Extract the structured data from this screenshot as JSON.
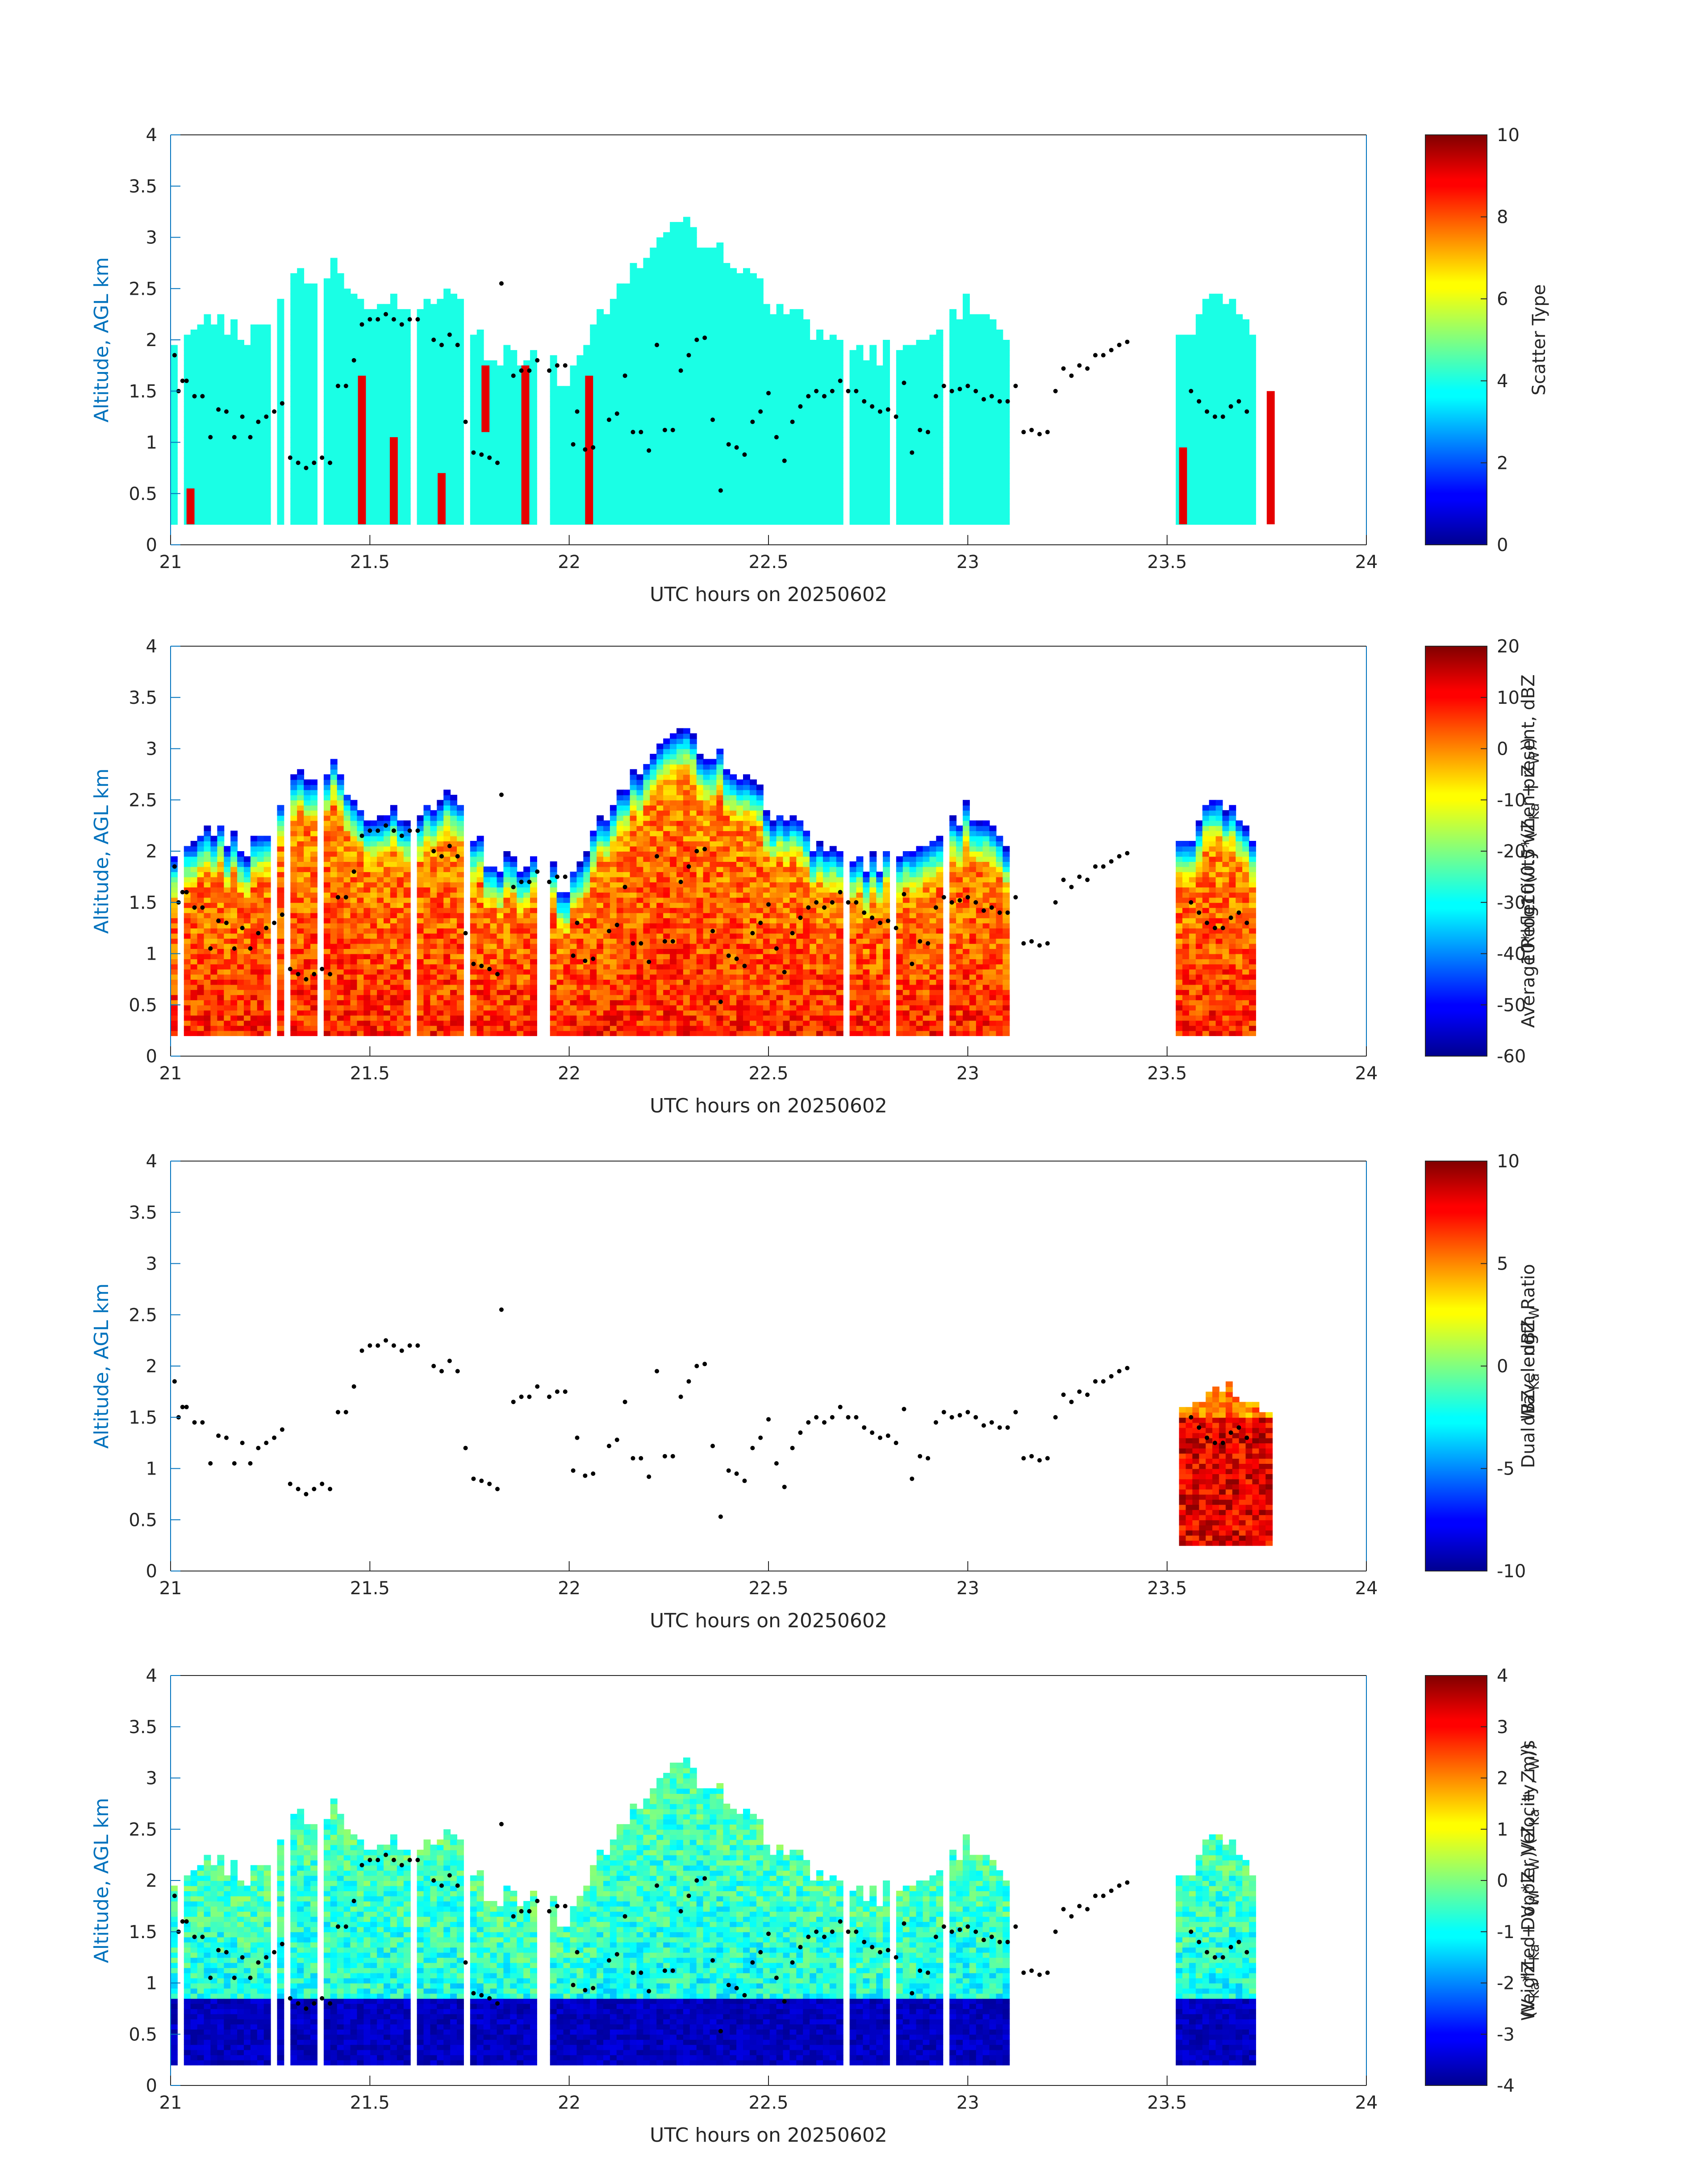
{
  "figure": {
    "panels": [
      {
        "id": "scatter-type",
        "ylabel": "Altitude, AGL km",
        "xlabel": "UTC hours on 20250602",
        "colorbar": {
          "label_line1": "Scatter Type",
          "label_line2": "",
          "ticks": [
            "10",
            "8",
            "6",
            "4",
            "2",
            "0"
          ],
          "clim": [
            0,
            10
          ]
        }
      },
      {
        "id": "reflectivity",
        "ylabel": "Altitude, AGL km",
        "xlabel": "UTC hours on 20250602",
        "colorbar": {
          "label_line1": "Average Reflectivity when present, dBZ",
          "label_line2": "10*log10(0.5*(Z",
          "label_line2_sub1": "Ka",
          "label_line2_mid": " + Z",
          "label_line2_sub2": "W",
          "label_line2_end": "))",
          "ticks": [
            "20",
            "10",
            "0",
            "-10",
            "-20",
            "-30",
            "-40",
            "-50",
            "-60"
          ],
          "clim": [
            -60,
            20
          ]
        }
      },
      {
        "id": "dwr",
        "ylabel": "Altitude, AGL km",
        "xlabel": "UTC hours on 20250602",
        "colorbar": {
          "label_line1": "Dual Wavelength Ratio",
          "label_line2": "dBZ",
          "label_line2_sub1": "Ka",
          "label_line2_mid": " - dBZ",
          "label_line2_sub2": "W",
          "label_line2_end": "",
          "ticks": [
            "10",
            "5",
            "0",
            "-5",
            "-10"
          ],
          "clim": [
            -10,
            10
          ]
        }
      },
      {
        "id": "doppler",
        "ylabel": "Altitude, AGL km",
        "xlabel": "UTC hours on 20250602",
        "colorbar": {
          "label_line1": "Weighted Doppler Velocity, m/s",
          "label_line2": "(V",
          "label_line2_sub1": "Ka",
          "label_line2_mid": "*Z",
          "label_line2_sub2": "Ka",
          "label_line2_end": " + V",
          "label_line2_sub3": "W",
          "label_line2_end2": "*Z",
          "label_line2_sub4": "W",
          "label_line2_end3": ")/(Z",
          "label_line2_sub5": "Ka",
          "label_line2_end4": " + Z",
          "label_line2_sub6": "W",
          "label_line2_end5": "))",
          "ticks": [
            "4",
            "3",
            "2",
            "1",
            "0",
            "-1",
            "-2",
            "-3",
            "-4"
          ],
          "clim": [
            -4,
            4
          ]
        }
      }
    ]
  },
  "chart_data": [
    {
      "type": "heatmap",
      "title": "",
      "xlabel": "UTC hours on 20250602",
      "ylabel": "Altitude, AGL km",
      "xlim": [
        21,
        24
      ],
      "ylim": [
        0,
        4
      ],
      "xticks": [
        "21",
        "21.5",
        "22",
        "22.5",
        "23",
        "23.5",
        "24"
      ],
      "yticks": [
        "0",
        "0.5",
        "1",
        "1.5",
        "2",
        "2.5",
        "3",
        "3.5",
        "4"
      ],
      "colorbar_label": "Scatter Type",
      "clim": [
        0,
        10
      ],
      "colormap": "jet",
      "cloud_top_km": [
        [
          21.0,
          2.0
        ],
        [
          21.1,
          2.2
        ],
        [
          21.2,
          2.0
        ],
        [
          21.3,
          2.5
        ],
        [
          21.4,
          2.7
        ],
        [
          21.5,
          2.35
        ],
        [
          21.6,
          2.3
        ],
        [
          21.7,
          2.5
        ],
        [
          21.8,
          1.8
        ],
        [
          21.9,
          1.85
        ],
        [
          22.0,
          1.6
        ],
        [
          22.1,
          2.4
        ],
        [
          22.2,
          2.8
        ],
        [
          22.3,
          3.1
        ],
        [
          22.4,
          2.8
        ],
        [
          22.5,
          2.35
        ],
        [
          22.6,
          2.1
        ],
        [
          22.7,
          1.9
        ],
        [
          22.8,
          1.85
        ],
        [
          22.9,
          2.0
        ],
        [
          23.0,
          2.35
        ],
        [
          23.1,
          2.0
        ],
        [
          23.55,
          2.0
        ],
        [
          23.62,
          2.6
        ],
        [
          23.72,
          1.9
        ]
      ],
      "dominant_value": 4,
      "patches_value": 9,
      "patches": [
        [
          21.04,
          0.2,
          0.55
        ],
        [
          21.47,
          0.2,
          1.65
        ],
        [
          21.55,
          0.2,
          1.05
        ],
        [
          21.67,
          0.2,
          0.7
        ],
        [
          21.78,
          1.1,
          1.75
        ],
        [
          21.88,
          0.2,
          1.75
        ],
        [
          22.04,
          0.2,
          1.65
        ],
        [
          23.53,
          0.2,
          0.95
        ],
        [
          23.75,
          0.2,
          1.5
        ]
      ],
      "cloud_base_dots_km": [
        [
          21.01,
          1.85
        ],
        [
          21.02,
          1.5
        ],
        [
          21.03,
          1.6
        ],
        [
          21.04,
          1.6
        ],
        [
          21.06,
          1.45
        ],
        [
          21.08,
          1.45
        ],
        [
          21.1,
          1.05
        ],
        [
          21.12,
          1.32
        ],
        [
          21.14,
          1.3
        ],
        [
          21.16,
          1.05
        ],
        [
          21.18,
          1.25
        ],
        [
          21.2,
          1.05
        ],
        [
          21.22,
          1.2
        ],
        [
          21.24,
          1.25
        ],
        [
          21.26,
          1.3
        ],
        [
          21.28,
          1.38
        ],
        [
          21.3,
          0.85
        ],
        [
          21.32,
          0.8
        ],
        [
          21.34,
          0.75
        ],
        [
          21.36,
          0.8
        ],
        [
          21.38,
          0.85
        ],
        [
          21.4,
          0.8
        ],
        [
          21.42,
          1.55
        ],
        [
          21.44,
          1.55
        ],
        [
          21.46,
          1.8
        ],
        [
          21.48,
          2.15
        ],
        [
          21.5,
          2.2
        ],
        [
          21.52,
          2.2
        ],
        [
          21.54,
          2.25
        ],
        [
          21.56,
          2.2
        ],
        [
          21.58,
          2.15
        ],
        [
          21.6,
          2.2
        ],
        [
          21.62,
          2.2
        ],
        [
          21.66,
          2.0
        ],
        [
          21.68,
          1.95
        ],
        [
          21.7,
          2.05
        ],
        [
          21.72,
          1.95
        ],
        [
          21.74,
          1.2
        ],
        [
          21.76,
          0.9
        ],
        [
          21.78,
          0.88
        ],
        [
          21.8,
          0.85
        ],
        [
          21.82,
          0.8
        ],
        [
          21.83,
          2.55
        ],
        [
          21.86,
          1.65
        ],
        [
          21.88,
          1.7
        ],
        [
          21.9,
          1.7
        ],
        [
          21.92,
          1.8
        ],
        [
          21.95,
          1.7
        ],
        [
          21.97,
          1.75
        ],
        [
          21.99,
          1.75
        ],
        [
          22.01,
          0.98
        ],
        [
          22.02,
          1.3
        ],
        [
          22.04,
          0.93
        ],
        [
          22.06,
          0.95
        ],
        [
          22.1,
          1.22
        ],
        [
          22.12,
          1.28
        ],
        [
          22.14,
          1.65
        ],
        [
          22.16,
          1.1
        ],
        [
          22.18,
          1.1
        ],
        [
          22.2,
          0.92
        ],
        [
          22.22,
          1.95
        ],
        [
          22.24,
          1.12
        ],
        [
          22.26,
          1.12
        ],
        [
          22.28,
          1.7
        ],
        [
          22.3,
          1.85
        ],
        [
          22.32,
          2.0
        ],
        [
          22.34,
          2.02
        ],
        [
          22.36,
          1.22
        ],
        [
          22.38,
          0.53
        ],
        [
          22.4,
          0.98
        ],
        [
          22.42,
          0.95
        ],
        [
          22.44,
          0.88
        ],
        [
          22.46,
          1.2
        ],
        [
          22.48,
          1.3
        ],
        [
          22.5,
          1.48
        ],
        [
          22.52,
          1.05
        ],
        [
          22.54,
          0.82
        ],
        [
          22.56,
          1.2
        ],
        [
          22.58,
          1.35
        ],
        [
          22.6,
          1.45
        ],
        [
          22.62,
          1.5
        ],
        [
          22.64,
          1.45
        ],
        [
          22.66,
          1.5
        ],
        [
          22.68,
          1.6
        ],
        [
          22.7,
          1.5
        ],
        [
          22.72,
          1.5
        ],
        [
          22.74,
          1.4
        ],
        [
          22.76,
          1.35
        ],
        [
          22.78,
          1.3
        ],
        [
          22.8,
          1.32
        ],
        [
          22.82,
          1.25
        ],
        [
          22.84,
          1.58
        ],
        [
          22.86,
          0.9
        ],
        [
          22.88,
          1.12
        ],
        [
          22.9,
          1.1
        ],
        [
          22.92,
          1.45
        ],
        [
          22.94,
          1.55
        ],
        [
          22.96,
          1.5
        ],
        [
          22.98,
          1.52
        ],
        [
          23.0,
          1.55
        ],
        [
          23.02,
          1.5
        ],
        [
          23.04,
          1.42
        ],
        [
          23.06,
          1.45
        ],
        [
          23.08,
          1.4
        ],
        [
          23.1,
          1.4
        ],
        [
          23.12,
          1.55
        ],
        [
          23.14,
          1.1
        ],
        [
          23.16,
          1.12
        ],
        [
          23.18,
          1.08
        ],
        [
          23.2,
          1.1
        ],
        [
          23.22,
          1.5
        ],
        [
          23.24,
          1.72
        ],
        [
          23.26,
          1.65
        ],
        [
          23.28,
          1.75
        ],
        [
          23.3,
          1.72
        ],
        [
          23.32,
          1.85
        ],
        [
          23.34,
          1.85
        ],
        [
          23.36,
          1.9
        ],
        [
          23.38,
          1.95
        ],
        [
          23.4,
          1.98
        ],
        [
          23.56,
          1.5
        ],
        [
          23.58,
          1.4
        ],
        [
          23.6,
          1.3
        ],
        [
          23.62,
          1.25
        ],
        [
          23.64,
          1.25
        ],
        [
          23.66,
          1.35
        ],
        [
          23.68,
          1.4
        ],
        [
          23.7,
          1.3
        ]
      ]
    },
    {
      "type": "heatmap",
      "title": "",
      "xlabel": "UTC hours on 20250602",
      "ylabel": "Altitude, AGL km",
      "xlim": [
        21,
        24
      ],
      "ylim": [
        0,
        4
      ],
      "xticks": [
        "21",
        "21.5",
        "22",
        "22.5",
        "23",
        "23.5",
        "24"
      ],
      "yticks": [
        "0",
        "0.5",
        "1",
        "1.5",
        "2",
        "2.5",
        "3",
        "3.5",
        "4"
      ],
      "colorbar_label": "Average Reflectivity when present, dBZ",
      "clim": [
        -60,
        20
      ],
      "colormap": "jet",
      "cloud_top_km": [
        [
          21.0,
          2.0
        ],
        [
          21.1,
          2.2
        ],
        [
          21.2,
          2.0
        ],
        [
          21.3,
          2.6
        ],
        [
          21.4,
          2.85
        ],
        [
          21.5,
          2.35
        ],
        [
          21.6,
          2.3
        ],
        [
          21.7,
          2.6
        ],
        [
          21.8,
          1.85
        ],
        [
          21.9,
          1.9
        ],
        [
          22.0,
          1.65
        ],
        [
          22.1,
          2.45
        ],
        [
          22.2,
          2.85
        ],
        [
          22.3,
          3.1
        ],
        [
          22.4,
          2.85
        ],
        [
          22.5,
          2.4
        ],
        [
          22.6,
          2.1
        ],
        [
          22.7,
          1.9
        ],
        [
          22.8,
          1.9
        ],
        [
          22.9,
          2.05
        ],
        [
          23.0,
          2.4
        ],
        [
          23.1,
          2.05
        ],
        [
          23.55,
          2.05
        ],
        [
          23.62,
          2.65
        ],
        [
          23.72,
          1.95
        ]
      ],
      "core_max_dbz": 15,
      "edge_dbz": -45
    },
    {
      "type": "heatmap",
      "title": "",
      "xlabel": "UTC hours on 20250602",
      "ylabel": "Altitude, AGL km",
      "xlim": [
        21,
        24
      ],
      "ylim": [
        0,
        4
      ],
      "xticks": [
        "21",
        "21.5",
        "22",
        "22.5",
        "23",
        "23.5",
        "24"
      ],
      "yticks": [
        "0",
        "0.5",
        "1",
        "1.5",
        "2",
        "2.5",
        "3",
        "3.5",
        "4"
      ],
      "colorbar_label": "Dual Wavelength Ratio",
      "clim": [
        -10,
        10
      ],
      "colormap": "jet",
      "region": {
        "x": [
          23.53,
          23.76
        ],
        "y": [
          0.25,
          1.85
        ]
      },
      "region_max": 10
    },
    {
      "type": "heatmap",
      "title": "",
      "xlabel": "UTC hours on 20250602",
      "ylabel": "Altitude, AGL km",
      "xlim": [
        21,
        24
      ],
      "ylim": [
        0,
        4
      ],
      "xticks": [
        "21",
        "21.5",
        "22",
        "22.5",
        "23",
        "23.5",
        "24"
      ],
      "yticks": [
        "0",
        "0.5",
        "1",
        "1.5",
        "2",
        "2.5",
        "3",
        "3.5",
        "4"
      ],
      "colorbar_label": "Weighted Doppler Velocity, m/s",
      "clim": [
        -4,
        4
      ],
      "colormap": "jet",
      "low_level_value": -3.8,
      "upper_value": -1.0
    }
  ]
}
